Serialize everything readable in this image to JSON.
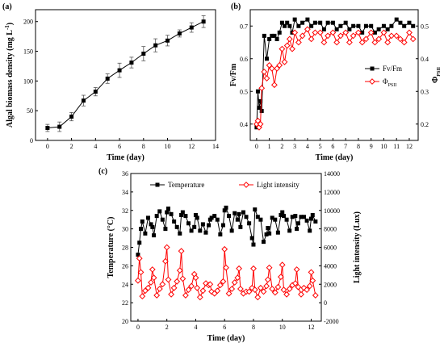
{
  "chart_data": [
    {
      "type": "line",
      "panel_label": "(a)",
      "xlabel": "Time (day)",
      "ylabel": "Algal biomass density (mg L",
      "ylabel_sup": "-1",
      "ylabel_end": ")",
      "xlim": [
        -1,
        14
      ],
      "ylim": [
        0,
        220
      ],
      "xticks": [
        0,
        2,
        4,
        6,
        8,
        10,
        12,
        14
      ],
      "yticks": [
        0,
        50,
        100,
        150,
        200
      ],
      "series": [
        {
          "x": [
            0,
            1,
            2,
            3,
            4,
            5,
            6,
            7,
            8,
            9,
            10,
            11,
            12,
            13
          ],
          "y": [
            21,
            23,
            40,
            67,
            82,
            104,
            118,
            131,
            146,
            160,
            168,
            180,
            190,
            200
          ],
          "err": [
            6,
            8,
            7,
            9,
            7,
            8,
            12,
            9,
            12,
            11,
            9,
            6,
            8,
            10
          ],
          "color": "#000000",
          "marker": "square"
        }
      ]
    },
    {
      "type": "line",
      "panel_label": "(b)",
      "xlabel": "Time (day)",
      "ylabel": "Fv/Fm",
      "y2label": "Φ",
      "y2label_sub": "PSII",
      "xlim": [
        -0.5,
        12.7
      ],
      "ylim": [
        0.35,
        0.75
      ],
      "y2lim": [
        0.15,
        0.55
      ],
      "xticks": [
        0,
        1,
        2,
        3,
        4,
        5,
        6,
        7,
        8,
        9,
        10,
        11,
        12
      ],
      "yticks": [
        0.4,
        0.5,
        0.6,
        0.7
      ],
      "y2ticks": [
        0.2,
        0.3,
        0.4,
        0.5
      ],
      "legend_position": "center-right",
      "series": [
        {
          "name": "Fv/Fm",
          "axis": "left",
          "color": "#000000",
          "marker": "square",
          "x": [
            0,
            0.1,
            0.2,
            0.3,
            0.4,
            0.6,
            0.8,
            1.0,
            1.2,
            1.4,
            1.6,
            1.8,
            2.0,
            2.2,
            2.4,
            2.6,
            2.8,
            3.0,
            3.3,
            3.6,
            4.0,
            4.3,
            4.6,
            5.0,
            5.3,
            5.6,
            6.0,
            6.3,
            6.6,
            7.0,
            7.3,
            7.6,
            8.0,
            8.3,
            8.6,
            9.0,
            9.3,
            9.6,
            10.0,
            10.3,
            10.6,
            11.0,
            11.3,
            11.6,
            12.0,
            12.3
          ],
          "y": [
            0.39,
            0.5,
            0.45,
            0.47,
            0.44,
            0.67,
            0.6,
            0.66,
            0.67,
            0.67,
            0.66,
            0.68,
            0.71,
            0.7,
            0.71,
            0.7,
            0.68,
            0.72,
            0.7,
            0.71,
            0.72,
            0.7,
            0.71,
            0.71,
            0.69,
            0.71,
            0.71,
            0.69,
            0.7,
            0.71,
            0.69,
            0.7,
            0.7,
            0.68,
            0.7,
            0.7,
            0.68,
            0.69,
            0.7,
            0.69,
            0.7,
            0.72,
            0.71,
            0.7,
            0.71,
            0.7
          ]
        },
        {
          "name": "Φ",
          "name_sub": "PSII",
          "axis": "right",
          "color": "#ff0000",
          "marker": "diamond-open",
          "x": [
            0,
            0.1,
            0.2,
            0.3,
            0.4,
            0.6,
            0.8,
            1.0,
            1.2,
            1.4,
            1.6,
            1.8,
            2.0,
            2.2,
            2.4,
            2.6,
            2.8,
            3.0,
            3.3,
            3.6,
            4.0,
            4.3,
            4.6,
            5.0,
            5.3,
            5.6,
            6.0,
            6.3,
            6.6,
            7.0,
            7.3,
            7.6,
            8.0,
            8.3,
            8.6,
            9.0,
            9.3,
            9.6,
            10.0,
            10.3,
            10.6,
            11.0,
            11.3,
            11.6,
            12.0,
            12.3
          ],
          "y": [
            0.2,
            0.21,
            0.19,
            0.2,
            0.31,
            0.36,
            0.34,
            0.38,
            0.37,
            0.32,
            0.37,
            0.38,
            0.43,
            0.39,
            0.44,
            0.46,
            0.43,
            0.48,
            0.45,
            0.47,
            0.49,
            0.46,
            0.48,
            0.48,
            0.45,
            0.47,
            0.48,
            0.45,
            0.47,
            0.48,
            0.45,
            0.47,
            0.48,
            0.45,
            0.46,
            0.48,
            0.45,
            0.46,
            0.48,
            0.45,
            0.47,
            0.47,
            0.46,
            0.45,
            0.48,
            0.46
          ]
        }
      ]
    },
    {
      "type": "line",
      "panel_label": "(c)",
      "xlabel": "Time (day)",
      "ylabel": "Temperature (°C)",
      "y2label": "Light intensity (Lux)",
      "xlim": [
        -0.5,
        12.7
      ],
      "ylim": [
        20,
        36
      ],
      "y2lim": [
        -2000,
        14000
      ],
      "xticks": [
        0,
        2,
        4,
        6,
        8,
        10,
        12
      ],
      "yticks": [
        20,
        22,
        24,
        26,
        28,
        30,
        32,
        34,
        36
      ],
      "y2ticks": [
        -2000,
        0,
        2000,
        4000,
        6000,
        8000,
        10000,
        12000,
        14000
      ],
      "legend_position": "top",
      "series": [
        {
          "name": "Temperature",
          "axis": "left",
          "color": "#000000",
          "marker": "square",
          "x": [
            0,
            0.1,
            0.2,
            0.3,
            0.5,
            0.7,
            0.9,
            1.0,
            1.1,
            1.3,
            1.5,
            1.7,
            1.9,
            2.0,
            2.1,
            2.3,
            2.5,
            2.7,
            2.9,
            3.0,
            3.1,
            3.3,
            3.5,
            3.7,
            3.9,
            4.0,
            4.1,
            4.3,
            4.5,
            4.7,
            4.9,
            5.0,
            5.1,
            5.3,
            5.5,
            5.7,
            5.9,
            6.0,
            6.1,
            6.3,
            6.5,
            6.7,
            6.9,
            7.0,
            7.1,
            7.3,
            7.5,
            7.7,
            7.9,
            8.0,
            8.1,
            8.3,
            8.5,
            8.7,
            8.9,
            9.0,
            9.1,
            9.3,
            9.5,
            9.7,
            9.9,
            10.0,
            10.1,
            10.3,
            10.5,
            10.7,
            10.9,
            11.0,
            11.1,
            11.3,
            11.5,
            11.7,
            11.9,
            12.0,
            12.1,
            12.3
          ],
          "y": [
            27.2,
            28.5,
            30.0,
            30.8,
            29.5,
            31.2,
            30.5,
            30.2,
            29.3,
            31.4,
            31.9,
            31.0,
            30.0,
            31.8,
            32.2,
            31.6,
            30.8,
            30.2,
            29.5,
            31.5,
            31.8,
            31.4,
            30.6,
            29.8,
            30.2,
            31.5,
            31.2,
            29.8,
            30.5,
            29.6,
            30.4,
            31.0,
            31.2,
            31.4,
            31.0,
            29.4,
            30.4,
            32.0,
            32.3,
            31.4,
            29.8,
            31.7,
            31.0,
            31.6,
            30.2,
            31.8,
            31.3,
            30.6,
            29.0,
            28.3,
            32.1,
            31.3,
            31.0,
            28.6,
            29.4,
            30.1,
            29.5,
            31.2,
            31.0,
            29.6,
            31.5,
            31.8,
            31.4,
            31.0,
            29.8,
            31.3,
            31.4,
            30.0,
            30.6,
            31.3,
            31.3,
            30.9,
            29.8,
            31.1,
            31.5,
            30.8
          ]
        },
        {
          "name": "Light intensity",
          "axis": "right",
          "color": "#ff0000",
          "marker": "diamond-open",
          "x": [
            0,
            0.1,
            0.2,
            0.3,
            0.5,
            0.7,
            0.9,
            1.0,
            1.1,
            1.3,
            1.5,
            1.7,
            1.9,
            2.0,
            2.1,
            2.3,
            2.5,
            2.7,
            2.9,
            3.0,
            3.1,
            3.3,
            3.5,
            3.7,
            3.9,
            4.0,
            4.1,
            4.3,
            4.5,
            4.7,
            4.9,
            5.0,
            5.1,
            5.3,
            5.5,
            5.7,
            5.9,
            6.0,
            6.1,
            6.3,
            6.5,
            6.7,
            6.9,
            7.0,
            7.1,
            7.3,
            7.5,
            7.7,
            7.9,
            8.0,
            8.1,
            8.3,
            8.5,
            8.7,
            8.9,
            9.0,
            9.1,
            9.3,
            9.5,
            9.7,
            9.9,
            10.0,
            10.1,
            10.3,
            10.5,
            10.7,
            10.9,
            11.0,
            11.1,
            11.3,
            11.5,
            11.7,
            11.9,
            12.0,
            12.1,
            12.3
          ],
          "y": [
            2400,
            4800,
            3300,
            700,
            1300,
            1600,
            2200,
            3600,
            2700,
            800,
            1500,
            2000,
            4500,
            6000,
            2500,
            900,
            1600,
            2300,
            3500,
            5600,
            2600,
            800,
            1400,
            1800,
            3100,
            2700,
            1600,
            600,
            1300,
            2100,
            1900,
            2000,
            1200,
            1000,
            1300,
            1900,
            2300,
            5800,
            3800,
            1000,
            1500,
            2200,
            2700,
            3700,
            1500,
            1000,
            1200,
            1200,
            1600,
            3700,
            1400,
            600,
            1600,
            1200,
            1800,
            2500,
            3800,
            1500,
            1100,
            1700,
            2800,
            4100,
            1400,
            900,
            1500,
            1900,
            2100,
            3600,
            1700,
            900,
            1600,
            1400,
            1800,
            3300,
            2400,
            800
          ]
        }
      ]
    }
  ]
}
